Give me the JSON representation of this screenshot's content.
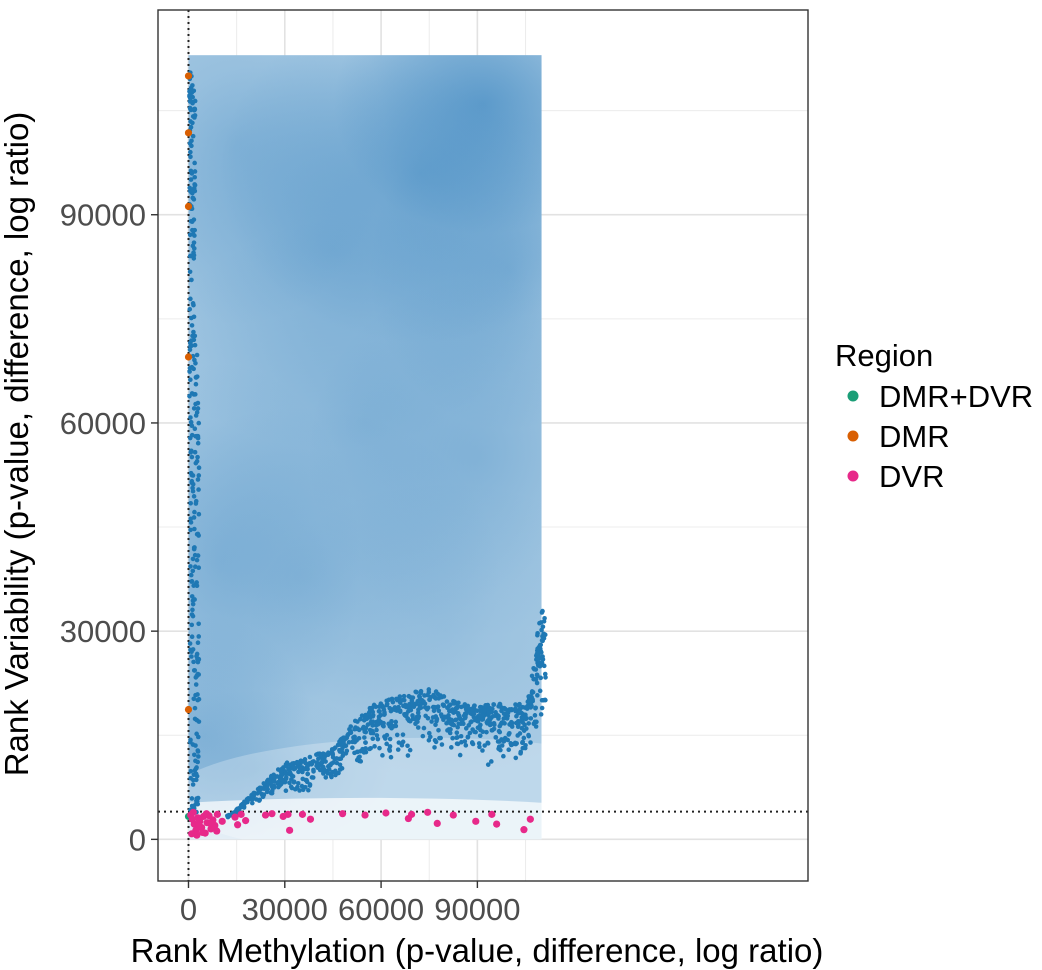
{
  "chart_data": {
    "type": "scatter",
    "xlabel": "Rank Methylation (p-value, difference, log ratio)",
    "ylabel": "Rank Variability (p-value, difference, log ratio)",
    "xlim": [
      -9500,
      193000
    ],
    "ylim": [
      -6000,
      119500
    ],
    "xticks": [
      0,
      30000,
      60000,
      90000
    ],
    "yticks": [
      0,
      30000,
      60000,
      90000
    ],
    "grid": true,
    "density_extent": {
      "x": [
        0,
        110000
      ],
      "y": [
        0,
        113000
      ]
    },
    "reference_lines": {
      "vertical_x": 0,
      "horizontal_y": 4000
    },
    "background_points_color": "#1f78b4",
    "density_color": "#2b7bba",
    "legend": {
      "title": "Region",
      "position": "right",
      "entries": [
        {
          "label": "DMR+DVR",
          "color": "#1b9e77"
        },
        {
          "label": "DMR",
          "color": "#d95f02"
        },
        {
          "label": "DVR",
          "color": "#e7298a"
        }
      ]
    },
    "series": [
      {
        "name": "DMR+DVR",
        "color": "#1b9e77",
        "points": [
          [
            0,
            3300
          ]
        ]
      },
      {
        "name": "DMR",
        "color": "#d95f02",
        "points": [
          [
            0,
            110000
          ],
          [
            0,
            101800
          ],
          [
            0,
            91200
          ],
          [
            0,
            69500
          ],
          [
            0,
            18700
          ]
        ]
      },
      {
        "name": "DVR",
        "color": "#e7298a",
        "points": [
          [
            700,
            3500
          ],
          [
            1200,
            2900
          ],
          [
            1800,
            2200
          ],
          [
            2300,
            1300
          ],
          [
            2900,
            3100
          ],
          [
            3500,
            2600
          ],
          [
            4100,
            1700
          ],
          [
            4700,
            3300
          ],
          [
            5200,
            900
          ],
          [
            5800,
            2400
          ],
          [
            6400,
            3400
          ],
          [
            7000,
            1500
          ],
          [
            7600,
            2800
          ],
          [
            8200,
            2000
          ],
          [
            9000,
            3600
          ],
          [
            1000,
            800
          ],
          [
            1500,
            3900
          ],
          [
            2600,
            600
          ],
          [
            3300,
            2000
          ],
          [
            4400,
            1000
          ],
          [
            5600,
            3700
          ],
          [
            6800,
            2300
          ],
          [
            8800,
            1200
          ],
          [
            10500,
            2600
          ],
          [
            14500,
            3200
          ],
          [
            15300,
            2100
          ],
          [
            16400,
            3600
          ],
          [
            17800,
            2700
          ],
          [
            24000,
            3500
          ],
          [
            26000,
            3700
          ],
          [
            29500,
            3300
          ],
          [
            31000,
            3600
          ],
          [
            31500,
            1300
          ],
          [
            35500,
            3600
          ],
          [
            38000,
            2900
          ],
          [
            48000,
            3700
          ],
          [
            55000,
            3500
          ],
          [
            61500,
            3800
          ],
          [
            68500,
            3000
          ],
          [
            69500,
            3600
          ],
          [
            74500,
            3900
          ],
          [
            77500,
            2300
          ],
          [
            82500,
            3500
          ],
          [
            89500,
            2600
          ],
          [
            94500,
            3600
          ],
          [
            96000,
            2200
          ],
          [
            104500,
            1400
          ],
          [
            106500,
            2900
          ]
        ]
      }
    ]
  }
}
